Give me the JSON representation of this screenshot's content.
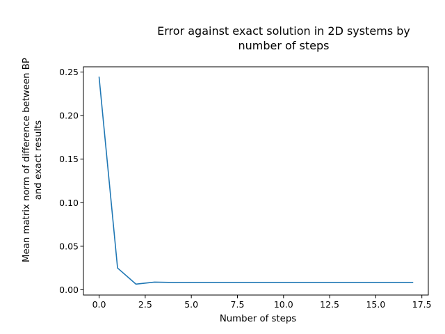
{
  "chart_data": {
    "type": "line",
    "title_lines": [
      "Error against exact solution in 2D systems by",
      "number of steps"
    ],
    "xlabel": "Number of steps",
    "ylabel_lines": [
      "Mean matrix norm of difference between BP",
      "and exact results"
    ],
    "xlim": [
      -0.85,
      17.85
    ],
    "ylim": [
      -0.006,
      0.256
    ],
    "xticks": [
      0.0,
      2.5,
      5.0,
      7.5,
      10.0,
      12.5,
      15.0,
      17.5
    ],
    "xtick_labels": [
      "0.0",
      "2.5",
      "5.0",
      "7.5",
      "10.0",
      "12.5",
      "15.0",
      "17.5"
    ],
    "yticks": [
      0.0,
      0.05,
      0.1,
      0.15,
      0.2,
      0.25
    ],
    "ytick_labels": [
      "0.00",
      "0.05",
      "0.10",
      "0.15",
      "0.20",
      "0.25"
    ],
    "grid": false,
    "series": [
      {
        "color": "#1f77b4",
        "x": [
          0,
          1,
          2,
          3,
          4,
          5,
          6,
          7,
          8,
          9,
          10,
          11,
          12,
          13,
          14,
          15,
          16,
          17
        ],
        "y": [
          0.244,
          0.025,
          0.0065,
          0.0088,
          0.0084,
          0.0085,
          0.0085,
          0.0085,
          0.0085,
          0.0085,
          0.0085,
          0.0085,
          0.0085,
          0.0085,
          0.0085,
          0.0085,
          0.0085,
          0.0085
        ]
      }
    ]
  }
}
